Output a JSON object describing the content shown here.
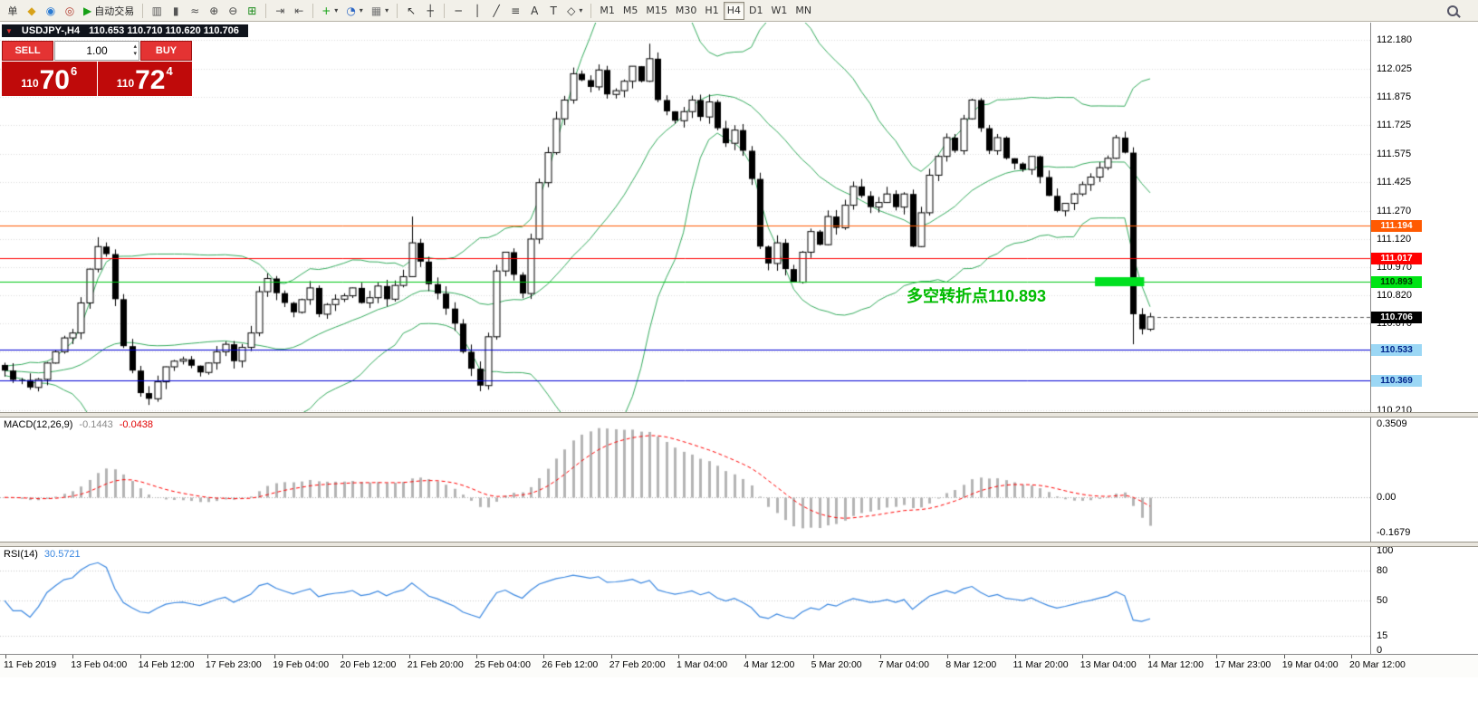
{
  "toolbar": {
    "groups": [
      {
        "items": [
          {
            "name": "new-order-button",
            "text": "单"
          },
          {
            "name": "charts-icon",
            "glyph": "◆",
            "glyph_color": "#d8a21a"
          },
          {
            "name": "community-icon",
            "glyph": "◉",
            "glyph_color": "#2b7bd3"
          },
          {
            "name": "market-icon",
            "glyph": "◎",
            "glyph_color": "#b23b2e"
          },
          {
            "name": "auto-trading-button",
            "glyph": "▶",
            "glyph_color": "#16a016",
            "label": "自动交易"
          }
        ]
      },
      {
        "items": [
          {
            "name": "bar-chart-icon",
            "glyph": "▥",
            "glyph_color": "#555"
          },
          {
            "name": "candlestick-chart-icon",
            "glyph": "▮",
            "glyph_color": "#555"
          },
          {
            "name": "line-chart-icon",
            "glyph": "≈",
            "glyph_color": "#555"
          },
          {
            "name": "zoom-in-icon",
            "glyph": "⊕",
            "glyph_color": "#444"
          },
          {
            "name": "zoom-out-icon",
            "glyph": "⊖",
            "glyph_color": "#444"
          },
          {
            "name": "tile-windows-icon",
            "glyph": "⊞",
            "glyph_color": "#188a18"
          }
        ]
      },
      {
        "items": [
          {
            "name": "auto-scroll-icon",
            "glyph": "⇥",
            "glyph_color": "#555"
          },
          {
            "name": "chart-shift-icon",
            "glyph": "⇤",
            "glyph_color": "#555"
          }
        ]
      },
      {
        "items": [
          {
            "name": "indicators-button",
            "glyph": "+",
            "glyph_color": "#17a317",
            "caret": true
          },
          {
            "name": "periods-button",
            "glyph": "◔",
            "glyph_color": "#2b66c4",
            "caret": true
          },
          {
            "name": "templates-button",
            "glyph": "▦",
            "glyph_color": "#777",
            "caret": true
          }
        ]
      },
      {
        "items": [
          {
            "name": "cursor-icon",
            "glyph": "↖",
            "glyph_color": "#333"
          },
          {
            "name": "crosshair-icon",
            "glyph": "┼",
            "glyph_color": "#333"
          }
        ]
      },
      {
        "items": [
          {
            "name": "horizontal-line-icon",
            "glyph": "─",
            "glyph_color": "#333"
          },
          {
            "name": "vertical-line-icon",
            "glyph": "│",
            "glyph_color": "#333"
          },
          {
            "name": "trendline-icon",
            "glyph": "╱",
            "glyph_color": "#333"
          },
          {
            "name": "fibonacci-icon",
            "glyph": "≡",
            "glyph_color": "#333"
          },
          {
            "name": "text-tool-icon",
            "glyph": "A",
            "glyph_color": "#333"
          },
          {
            "name": "label-tool-icon",
            "glyph": "T",
            "glyph_color": "#333"
          },
          {
            "name": "shapes-button",
            "glyph": "◇",
            "glyph_color": "#333",
            "caret": true
          }
        ]
      },
      {
        "items": [
          {
            "name": "tf-m1-button",
            "text": "M1"
          },
          {
            "name": "tf-m5-button",
            "text": "M5"
          },
          {
            "name": "tf-m15-button",
            "text": "M15"
          },
          {
            "name": "tf-m30-button",
            "text": "M30"
          },
          {
            "name": "tf-h1-button",
            "text": "H1"
          },
          {
            "name": "tf-h4-button",
            "text": "H4",
            "active": true
          },
          {
            "name": "tf-d1-button",
            "text": "D1"
          },
          {
            "name": "tf-w1-button",
            "text": "W1"
          },
          {
            "name": "tf-mn-button",
            "text": "MN"
          }
        ]
      },
      {
        "right": true,
        "items": [
          {
            "name": "search-icon",
            "css": "magnifier"
          }
        ]
      }
    ]
  },
  "quote_panel": {
    "symbol": "USDJPY-,H4",
    "ohlc": "110.653 110.710 110.620 110.706",
    "sell_label": "SELL",
    "buy_label": "BUY",
    "volume": "1.00",
    "sell_price": {
      "prefix": "110",
      "big": "70",
      "sup": "6"
    },
    "buy_price": {
      "prefix": "110",
      "big": "72",
      "sup": "4"
    }
  },
  "chart_data": [
    {
      "type": "candlestick",
      "symbol": "USDJPY-",
      "timeframe": "H4",
      "n_candles": 136,
      "close_waypoints": [
        [
          0,
          110.42
        ],
        [
          2,
          110.37
        ],
        [
          3,
          110.33
        ],
        [
          5,
          110.46
        ],
        [
          6,
          110.52
        ],
        [
          8,
          110.62
        ],
        [
          9,
          110.78
        ],
        [
          10,
          110.96
        ],
        [
          11,
          111.08
        ],
        [
          12,
          111.04
        ],
        [
          13,
          110.8
        ],
        [
          14,
          110.55
        ],
        [
          15,
          110.42
        ],
        [
          16,
          110.3
        ],
        [
          17,
          110.27
        ],
        [
          18,
          110.36
        ],
        [
          19,
          110.44
        ],
        [
          21,
          110.48
        ],
        [
          23,
          110.41
        ],
        [
          25,
          110.52
        ],
        [
          26,
          110.56
        ],
        [
          27,
          110.47
        ],
        [
          29,
          110.62
        ],
        [
          30,
          110.84
        ],
        [
          31,
          110.91
        ],
        [
          33,
          110.78
        ],
        [
          34,
          110.73
        ],
        [
          36,
          110.86
        ],
        [
          37,
          110.72
        ],
        [
          39,
          110.8
        ],
        [
          41,
          110.86
        ],
        [
          42,
          110.78
        ],
        [
          44,
          110.87
        ],
        [
          45,
          110.8
        ],
        [
          47,
          110.92
        ],
        [
          48,
          111.1
        ],
        [
          49,
          111.0
        ],
        [
          50,
          110.88
        ],
        [
          51,
          110.83
        ],
        [
          52,
          110.75
        ],
        [
          53,
          110.67
        ],
        [
          54,
          110.52
        ],
        [
          55,
          110.43
        ],
        [
          56,
          110.34
        ],
        [
          57,
          110.6
        ],
        [
          58,
          110.95
        ],
        [
          59,
          111.05
        ],
        [
          60,
          110.93
        ],
        [
          61,
          110.83
        ],
        [
          62,
          111.12
        ],
        [
          63,
          111.42
        ],
        [
          64,
          111.58
        ],
        [
          65,
          111.76
        ],
        [
          66,
          111.86
        ],
        [
          67,
          112.0
        ],
        [
          69,
          111.93
        ],
        [
          70,
          112.02
        ],
        [
          71,
          111.89
        ],
        [
          73,
          111.96
        ],
        [
          74,
          112.04
        ],
        [
          75,
          111.96
        ],
        [
          76,
          112.08
        ],
        [
          77,
          111.86
        ],
        [
          78,
          111.8
        ],
        [
          79,
          111.75
        ],
        [
          81,
          111.86
        ],
        [
          82,
          111.77
        ],
        [
          83,
          111.85
        ],
        [
          84,
          111.71
        ],
        [
          85,
          111.63
        ],
        [
          86,
          111.7
        ],
        [
          87,
          111.59
        ],
        [
          88,
          111.44
        ],
        [
          89,
          111.08
        ],
        [
          90,
          110.99
        ],
        [
          91,
          111.1
        ],
        [
          92,
          110.96
        ],
        [
          93,
          110.89
        ],
        [
          94,
          111.05
        ],
        [
          95,
          111.16
        ],
        [
          96,
          111.09
        ],
        [
          97,
          111.24
        ],
        [
          98,
          111.18
        ],
        [
          99,
          111.3
        ],
        [
          100,
          111.4
        ],
        [
          101,
          111.35
        ],
        [
          102,
          111.29
        ],
        [
          104,
          111.36
        ],
        [
          105,
          111.29
        ],
        [
          106,
          111.36
        ],
        [
          107,
          111.08
        ],
        [
          108,
          111.26
        ],
        [
          109,
          111.46
        ],
        [
          110,
          111.56
        ],
        [
          111,
          111.66
        ],
        [
          112,
          111.59
        ],
        [
          113,
          111.76
        ],
        [
          114,
          111.86
        ],
        [
          115,
          111.71
        ],
        [
          116,
          111.59
        ],
        [
          117,
          111.66
        ],
        [
          118,
          111.55
        ],
        [
          120,
          111.49
        ],
        [
          121,
          111.56
        ],
        [
          122,
          111.45
        ],
        [
          123,
          111.35
        ],
        [
          124,
          111.27
        ],
        [
          125,
          111.31
        ],
        [
          126,
          111.36
        ],
        [
          127,
          111.41
        ],
        [
          128,
          111.45
        ],
        [
          129,
          111.5
        ],
        [
          130,
          111.55
        ],
        [
          131,
          111.66
        ],
        [
          132,
          111.58
        ],
        [
          133,
          110.72
        ],
        [
          134,
          110.64
        ],
        [
          135,
          110.706
        ]
      ],
      "wick_spikes": [
        {
          "i": 11,
          "high": 111.13
        },
        {
          "i": 17,
          "low": 110.25
        },
        {
          "i": 48,
          "high": 111.24
        },
        {
          "i": 56,
          "low": 110.31
        },
        {
          "i": 76,
          "high": 112.16
        },
        {
          "i": 133,
          "low": 110.56
        }
      ],
      "bollinger": {
        "period": 20,
        "deviation": 2,
        "color": "#35ab5d"
      },
      "y_axis": {
        "min": 110.199,
        "max": 112.272,
        "ticks": [
          "112.180",
          "112.025",
          "111.875",
          "111.725",
          "111.575",
          "111.425",
          "111.270",
          "111.120",
          "110.970",
          "110.820",
          "110.670",
          "110.520",
          "110.370",
          "110.210"
        ]
      },
      "x_labels": [
        "11 Feb 2019",
        "13 Feb 04:00",
        "14 Feb 12:00",
        "17 Feb 23:00",
        "19 Feb 04:00",
        "20 Feb 12:00",
        "21 Feb 20:00",
        "25 Feb 04:00",
        "26 Feb 12:00",
        "27 Feb 20:00",
        "1 Mar 04:00",
        "4 Mar 12:00",
        "5 Mar 20:00",
        "7 Mar 04:00",
        "8 Mar 12:00",
        "11 Mar 20:00",
        "13 Mar 04:00",
        "14 Mar 12:00",
        "17 Mar 23:00",
        "19 Mar 04:00",
        "20 Mar 12:00"
      ],
      "levels": [
        {
          "price": 111.194,
          "label": "111.194",
          "line": "#ff5a02",
          "badge_bg": "#ff5a02",
          "badge_fg": "#ffffff"
        },
        {
          "price": 111.017,
          "label": "111.017",
          "line": "#ff0000",
          "badge_bg": "#ff0000",
          "badge_fg": "#ffffff"
        },
        {
          "price": 110.893,
          "label": "110.893",
          "line": "#00c814",
          "badge_bg": "#00e414",
          "badge_fg": "#003300"
        },
        {
          "price": 110.533,
          "label": "110.533",
          "line": "#0000d2",
          "badge_bg": "#9bd7f5",
          "badge_fg": "#00258c"
        },
        {
          "price": 110.369,
          "label": "110.369",
          "line": "#0000d2",
          "badge_bg": "#9bd7f5",
          "badge_fg": "#00258c"
        }
      ],
      "current": {
        "price": 110.706,
        "label": "110.706",
        "badge_bg": "#000000",
        "badge_fg": "#ffffff"
      },
      "highlight": {
        "price": 110.893,
        "from_candle": 128.5,
        "to_candle": 134.3,
        "color": "#00e020"
      },
      "annotation": {
        "text": "多空转折点110.893",
        "color": "#00bb00"
      }
    },
    {
      "type": "macd",
      "label": "MACD(12,26,9)",
      "value_main": "-0.1443",
      "value_signal": "-0.0438",
      "params": {
        "fast": 12,
        "slow": 26,
        "signal": 9
      },
      "range": [
        -0.21,
        0.38
      ],
      "y_ticks": [
        "0.3509",
        "0.00",
        "-0.1679"
      ],
      "histogram_color": "#b4b4b4",
      "signal_color": "#ff0000"
    },
    {
      "type": "rsi",
      "label": "RSI(14)",
      "value": "30.5721",
      "period": 14,
      "range": [
        0,
        100
      ],
      "levels": [
        80,
        50,
        15
      ],
      "y_ticks": [
        "100",
        "80",
        "50",
        "15",
        "0"
      ],
      "line_color": "#3a87e0"
    }
  ]
}
